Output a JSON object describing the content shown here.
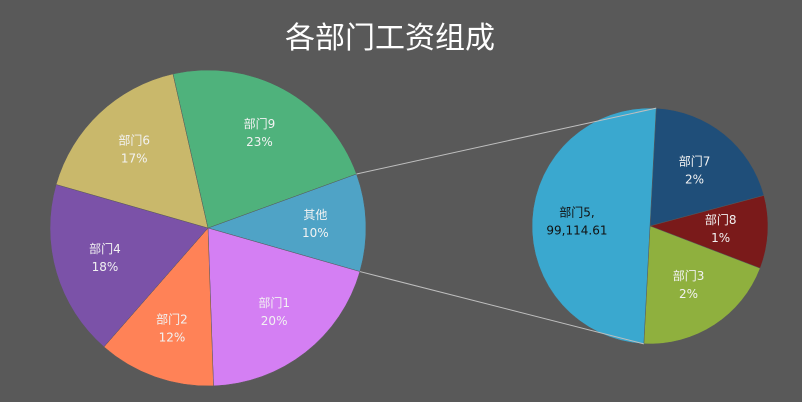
{
  "chart_data": {
    "type": "pie-of-pie",
    "title": "各部门工资组成",
    "categories": [
      "其他",
      "部门1",
      "部门2",
      "部门4",
      "部门6",
      "部门9"
    ],
    "values": [
      10,
      20,
      12,
      18,
      17,
      23
    ],
    "value_labels": [
      "10%",
      "20%",
      "12%",
      "18%",
      "17%",
      "23%"
    ],
    "colors": [
      "#4fa3c6",
      "#d47ff3",
      "#ff8257",
      "#7b52a8",
      "#c9b86b",
      "#4fb27c"
    ],
    "secondary": [
      {
        "name": "部门7",
        "value": 2,
        "value_label": "2%",
        "color": "#1f4e79"
      },
      {
        "name": "部门8",
        "value": 1,
        "value_label": "1%",
        "color": "#7a1a1a"
      },
      {
        "name": "部门3",
        "value": 2,
        "value_label": "2%",
        "color": "#8fb03e"
      },
      {
        "name": "部门5,",
        "value": 5,
        "amount": {
          "value": 99114.61,
          "label": "99,114.61"
        },
        "color": "#3aa8cf"
      }
    ]
  }
}
